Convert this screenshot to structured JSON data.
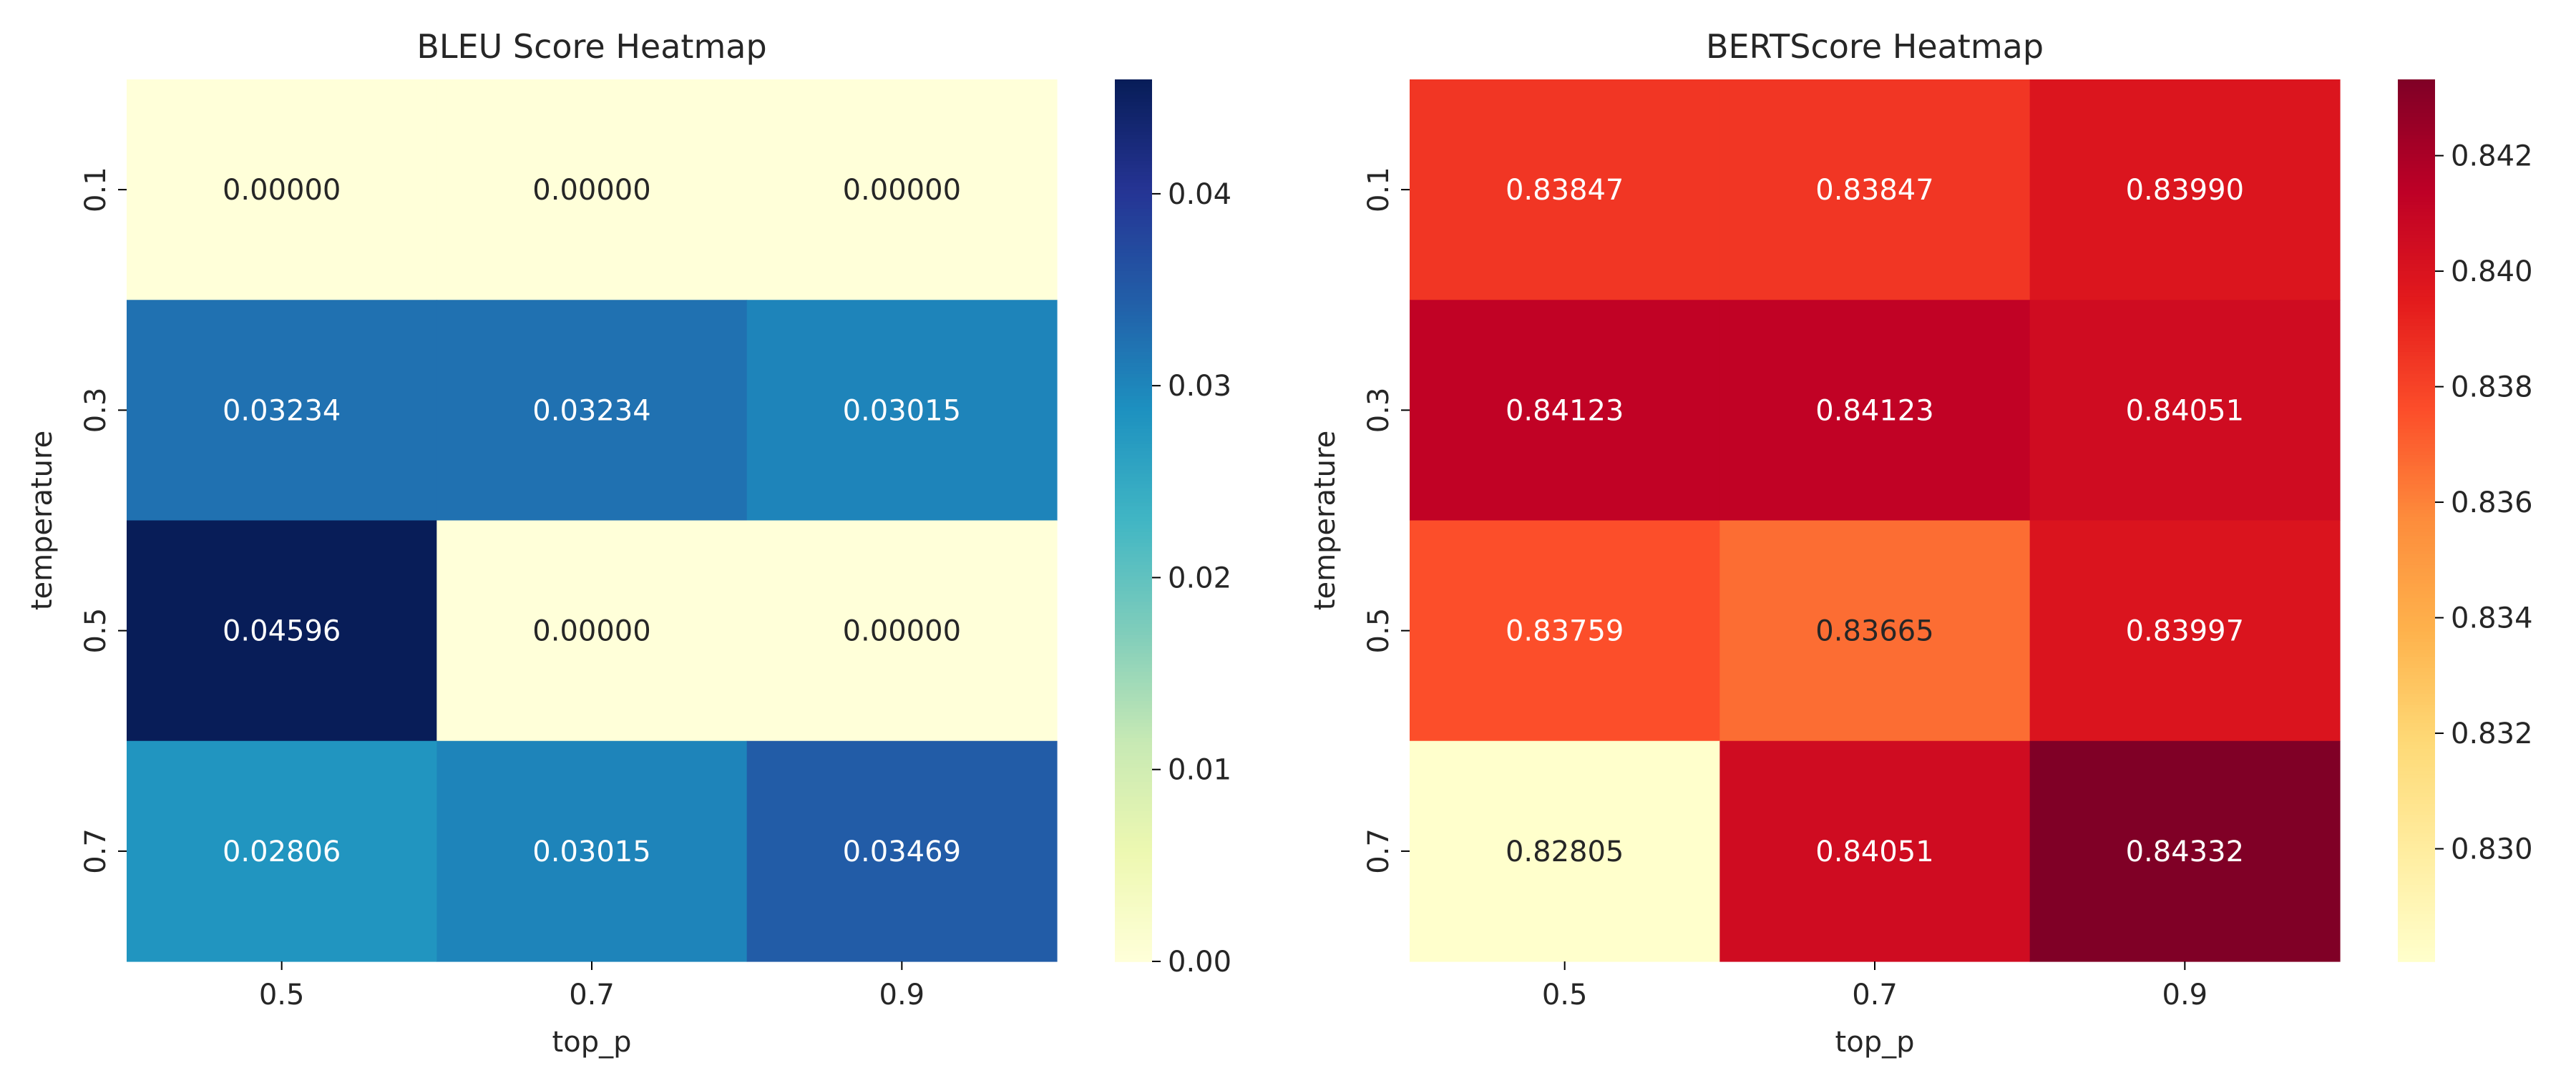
{
  "chart_data": [
    {
      "type": "heatmap",
      "title": "BLEU Score Heatmap",
      "xlabel": "top_p",
      "ylabel": "temperature",
      "x_categories": [
        "0.5",
        "0.7",
        "0.9"
      ],
      "y_categories": [
        "0.1",
        "0.3",
        "0.5",
        "0.7"
      ],
      "values": [
        [
          0.0,
          0.0,
          0.0
        ],
        [
          0.03234,
          0.03234,
          0.03015
        ],
        [
          0.04596,
          0.0,
          0.0
        ],
        [
          0.02806,
          0.03015,
          0.03469
        ]
      ],
      "value_labels": [
        [
          "0.00000",
          "0.00000",
          "0.00000"
        ],
        [
          "0.03234",
          "0.03234",
          "0.03015"
        ],
        [
          "0.04596",
          "0.00000",
          "0.00000"
        ],
        [
          "0.02806",
          "0.03015",
          "0.03469"
        ]
      ],
      "colormap": "YlGnBu",
      "vmin": 0.0,
      "vmax": 0.04596,
      "colorbar_ticks": [
        0.0,
        0.01,
        0.02,
        0.03,
        0.04
      ],
      "colorbar_tick_labels": [
        "0.00",
        "0.01",
        "0.02",
        "0.03",
        "0.04"
      ],
      "legend": "colorbar-right",
      "grid": false
    },
    {
      "type": "heatmap",
      "title": "BERTScore Heatmap",
      "xlabel": "top_p",
      "ylabel": "temperature",
      "x_categories": [
        "0.5",
        "0.7",
        "0.9"
      ],
      "y_categories": [
        "0.1",
        "0.3",
        "0.5",
        "0.7"
      ],
      "values": [
        [
          0.83847,
          0.83847,
          0.8399
        ],
        [
          0.84123,
          0.84123,
          0.84051
        ],
        [
          0.83759,
          0.83665,
          0.83997
        ],
        [
          0.82805,
          0.84051,
          0.84332
        ]
      ],
      "value_labels": [
        [
          "0.83847",
          "0.83847",
          "0.83990"
        ],
        [
          "0.84123",
          "0.84123",
          "0.84051"
        ],
        [
          "0.83759",
          "0.83665",
          "0.83997"
        ],
        [
          "0.82805",
          "0.84051",
          "0.84332"
        ]
      ],
      "colormap": "YlOrRd",
      "vmin": 0.82805,
      "vmax": 0.84332,
      "colorbar_ticks": [
        0.83,
        0.832,
        0.834,
        0.836,
        0.838,
        0.84,
        0.842
      ],
      "colorbar_tick_labels": [
        "0.830",
        "0.832",
        "0.834",
        "0.836",
        "0.838",
        "0.840",
        "0.842"
      ],
      "legend": "colorbar-right",
      "grid": false
    }
  ],
  "colormaps": {
    "YlGnBu": [
      "#ffffd9",
      "#edf8b1",
      "#c7e9b4",
      "#7fcdbb",
      "#41b6c4",
      "#1d91c0",
      "#225ea8",
      "#253494",
      "#081d58"
    ],
    "YlOrRd": [
      "#ffffcc",
      "#ffeda0",
      "#fed976",
      "#feb24c",
      "#fd8d3c",
      "#fc4e2a",
      "#e31a1c",
      "#bd0026",
      "#800026"
    ]
  },
  "colors": {
    "text_dark": "#262626",
    "text_light": "#ffffff",
    "axis": "#000000"
  }
}
